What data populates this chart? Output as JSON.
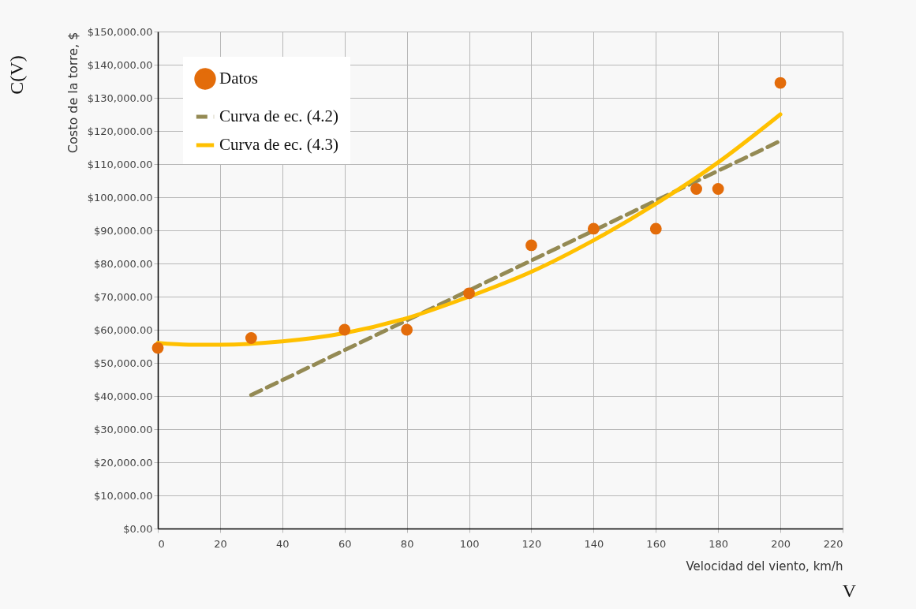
{
  "chart_data": {
    "type": "scatter",
    "xlabel": "Velocidad del viento, km/h",
    "ylabel": "Costo de la torre, $",
    "annotations": [
      "C(V)",
      "V"
    ],
    "xlim": [
      0,
      220
    ],
    "xticks": [
      0,
      20,
      40,
      60,
      80,
      100,
      120,
      140,
      160,
      180,
      200,
      220
    ],
    "ylim": [
      0,
      150000
    ],
    "yticks": [
      {
        "value": 0,
        "label": "$0.00"
      },
      {
        "value": 10000,
        "label": "$10,000.00"
      },
      {
        "value": 20000,
        "label": "$20,000.00"
      },
      {
        "value": 30000,
        "label": "$30,000.00"
      },
      {
        "value": 40000,
        "label": "$40,000.00"
      },
      {
        "value": 50000,
        "label": "$50,000.00"
      },
      {
        "value": 60000,
        "label": "$60,000.00"
      },
      {
        "value": 70000,
        "label": "$70,000.00"
      },
      {
        "value": 80000,
        "label": "$80,000.00"
      },
      {
        "value": 90000,
        "label": "$90,000.00"
      },
      {
        "value": 100000,
        "label": "$100,000.00"
      },
      {
        "value": 110000,
        "label": "$110,000.00"
      },
      {
        "value": 120000,
        "label": "$120,000.00"
      },
      {
        "value": 130000,
        "label": "$130,000.00"
      },
      {
        "value": 140000,
        "label": "$140,000.00"
      },
      {
        "value": 150000,
        "label": "$150,000.00"
      }
    ],
    "grid": true,
    "legend": "top left",
    "series": [
      {
        "name": "Datos",
        "marker": "circle",
        "color": "#e36c0a",
        "x": [
          0,
          30,
          60,
          80,
          100,
          120,
          140,
          160,
          173,
          180,
          200
        ],
        "values": [
          54500,
          57500,
          60000,
          60000,
          71000,
          85500,
          90500,
          90500,
          102500,
          102500,
          134500
        ]
      },
      {
        "name": "Curva de ec. (4.2)",
        "type": "line",
        "line_style": "dashed",
        "color": "#948a54",
        "x": [
          30,
          200
        ],
        "values": [
          40300,
          117000
        ]
      },
      {
        "name": "Curva de ec. (4.3)",
        "type": "line",
        "line_style": "solid",
        "color": "#ffc000",
        "x": [
          0,
          10,
          20,
          40,
          60,
          80,
          100,
          120,
          140,
          160,
          180,
          200
        ],
        "values": [
          56000,
          55500,
          55500,
          56500,
          59000,
          63500,
          70000,
          77500,
          87000,
          98000,
          110500,
          125000
        ]
      }
    ]
  }
}
